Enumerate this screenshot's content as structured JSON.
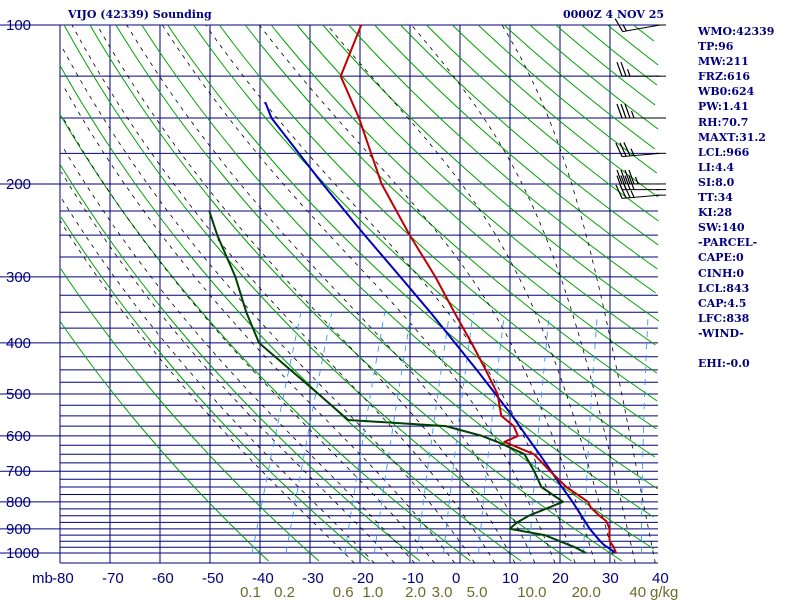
{
  "header": {
    "title": "VIJO (42339) Sounding",
    "timestamp": "0000Z  4 NOV 25"
  },
  "indices": [
    "WMO:42339",
    "TP:96",
    "MW:211",
    "FRZ:616",
    "WB0:624",
    "PW:1.41",
    "RH:70.7",
    "MAXT:31.2",
    "LCL:966",
    "LI:4.4",
    "SI:8.0",
    "TT:34",
    "KI:28",
    "SW:140",
    "-PARCEL-",
    "CAPE:0",
    "CINH:0",
    "LCL:843",
    "CAP:4.5",
    "LFC:838",
    "-WIND-",
    "",
    "EHI:-0.0"
  ],
  "colors": {
    "grid": "#000080",
    "dry_adiabat": "#00a000",
    "moist_adiabat": "#000000",
    "mixing_ratio": "#3399ff",
    "temperature": "#c00000",
    "dewpoint": "#004000",
    "parcel": "#0000c0",
    "mixing_label": "#6b6b2a"
  },
  "chart_data": {
    "type": "skew-t",
    "title": "VIJO (42339) Sounding",
    "pressure_ticks": [
      "100",
      "200",
      "300",
      "400",
      "500",
      "600",
      "700",
      "800",
      "900",
      "1000"
    ],
    "pressure_unit": "mb",
    "temperature_ticks": [
      "-80",
      "-70",
      "-60",
      "-50",
      "-40",
      "-30",
      "-20",
      "-10",
      "0",
      "10",
      "20",
      "30",
      "40"
    ],
    "temperature_unit": "C",
    "mixing_ratio_labels": [
      "0.1",
      "0.2",
      "0.6",
      "1.0",
      "2.0",
      "3.0",
      "5.0",
      "10.0",
      "20.0",
      "40"
    ],
    "mixing_ratio_unit": "g/kg",
    "mixing_ratio_values": [
      0.1,
      0.2,
      0.6,
      1.0,
      2.0,
      3.0,
      5.0,
      10.0,
      20.0,
      40.0
    ],
    "temperature_profile": [
      {
        "p": 1000,
        "t": 31.2
      },
      {
        "p": 975,
        "t": 30.3
      },
      {
        "p": 950,
        "t": 29.0
      },
      {
        "p": 925,
        "t": 28.4
      },
      {
        "p": 900,
        "t": 28.0
      },
      {
        "p": 870,
        "t": 26.7
      },
      {
        "p": 850,
        "t": 24.9
      },
      {
        "p": 820,
        "t": 22.5
      },
      {
        "p": 800,
        "t": 21.5
      },
      {
        "p": 750,
        "t": 16.0
      },
      {
        "p": 700,
        "t": 11.5
      },
      {
        "p": 650,
        "t": 6.9
      },
      {
        "p": 616,
        "t": 0.0
      },
      {
        "p": 600,
        "t": 2.2
      },
      {
        "p": 575,
        "t": 0.6
      },
      {
        "p": 550,
        "t": -2.7
      },
      {
        "p": 500,
        "t": -5.2
      },
      {
        "p": 450,
        "t": -9.5
      },
      {
        "p": 400,
        "t": -14.5
      },
      {
        "p": 350,
        "t": -20.4
      },
      {
        "p": 300,
        "t": -27.0
      },
      {
        "p": 250,
        "t": -35.5
      },
      {
        "p": 200,
        "t": -45.2
      },
      {
        "p": 150,
        "t": -55.0
      },
      {
        "p": 125,
        "t": -62.0
      },
      {
        "p": 100,
        "t": -62.0
      }
    ],
    "dewpoint_profile": [
      {
        "p": 1000,
        "t": 25.2
      },
      {
        "p": 975,
        "t": 22.5
      },
      {
        "p": 950,
        "t": 19.0
      },
      {
        "p": 925,
        "t": 15.5
      },
      {
        "p": 900,
        "t": 8.0
      },
      {
        "p": 875,
        "t": 9.0
      },
      {
        "p": 850,
        "t": 10.8
      },
      {
        "p": 800,
        "t": 16.5
      },
      {
        "p": 750,
        "t": 11.0
      },
      {
        "p": 700,
        "t": 8.3
      },
      {
        "p": 650,
        "t": 5.0
      },
      {
        "p": 616,
        "t": -1.4
      },
      {
        "p": 600,
        "t": -5.0
      },
      {
        "p": 575,
        "t": -13.0
      },
      {
        "p": 560,
        "t": -33.0
      },
      {
        "p": 500,
        "t": -41.0
      },
      {
        "p": 400,
        "t": -57.0
      },
      {
        "p": 350,
        "t": -62.0
      },
      {
        "p": 300,
        "t": -67.0
      },
      {
        "p": 250,
        "t": -74.0
      },
      {
        "p": 225,
        "t": -77.5
      }
    ],
    "parcel_profile": [
      {
        "p": 1000,
        "t": 31.2
      },
      {
        "p": 966,
        "t": 28.2
      },
      {
        "p": 950,
        "t": 27.1
      },
      {
        "p": 900,
        "t": 24.0
      },
      {
        "p": 850,
        "t": 21.3
      },
      {
        "p": 800,
        "t": 18.4
      },
      {
        "p": 750,
        "t": 15.1
      },
      {
        "p": 700,
        "t": 11.7
      },
      {
        "p": 650,
        "t": 8.0
      },
      {
        "p": 600,
        "t": 3.9
      },
      {
        "p": 550,
        "t": -0.5
      },
      {
        "p": 500,
        "t": -5.6
      },
      {
        "p": 450,
        "t": -11.3
      },
      {
        "p": 400,
        "t": -17.8
      },
      {
        "p": 350,
        "t": -25.2
      },
      {
        "p": 300,
        "t": -34.0
      },
      {
        "p": 250,
        "t": -44.5
      },
      {
        "p": 200,
        "t": -57.0
      },
      {
        "p": 150,
        "t": -72.5
      },
      {
        "p": 140,
        "t": -75.0
      }
    ],
    "wind_barbs": [
      {
        "p": 100,
        "dir": 260,
        "kt": 15
      },
      {
        "p": 125,
        "dir": 270,
        "kt": 25
      },
      {
        "p": 150,
        "dir": 270,
        "kt": 35
      },
      {
        "p": 175,
        "dir": 265,
        "kt": 35
      },
      {
        "p": 200,
        "dir": 270,
        "kt": 45
      },
      {
        "p": 205,
        "dir": 270,
        "kt": 40
      },
      {
        "p": 210,
        "dir": 265,
        "kt": 35
      }
    ]
  }
}
